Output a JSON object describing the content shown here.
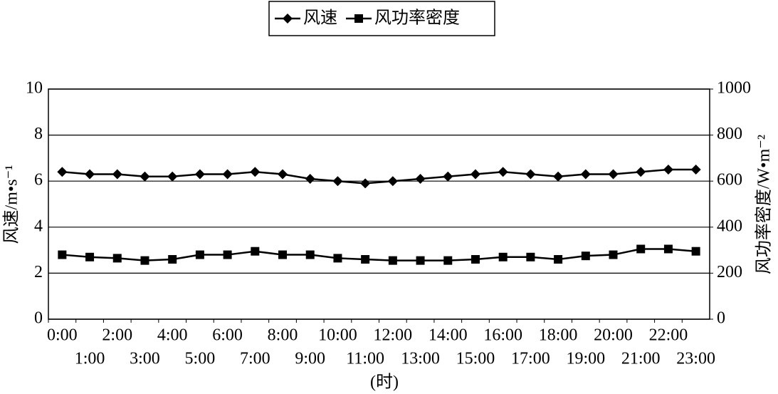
{
  "chart_data": {
    "type": "line",
    "x_label": "(时)",
    "y_label": "风速/m•s⁻¹",
    "y2_label": "风功率密度/W•m⁻²",
    "categories": [
      "0:00",
      "1:00",
      "2:00",
      "3:00",
      "4:00",
      "5:00",
      "6:00",
      "7:00",
      "8:00",
      "9:00",
      "10:00",
      "11:00",
      "12:00",
      "13:00",
      "14:00",
      "15:00",
      "16:00",
      "17:00",
      "18:00",
      "19:00",
      "20:00",
      "21:00",
      "22:00",
      "23:00"
    ],
    "series": [
      {
        "name": "风速",
        "color": "#000000",
        "marker": "diamond",
        "values": [
          6.4,
          6.3,
          6.3,
          6.2,
          6.2,
          6.3,
          6.3,
          6.4,
          6.3,
          6.1,
          6.0,
          5.9,
          6.0,
          6.1,
          6.2,
          6.3,
          6.4,
          6.3,
          6.2,
          6.3,
          6.3,
          6.4,
          6.5,
          6.5
        ]
      },
      {
        "name": "风功率密度",
        "color": "#000000",
        "marker": "square",
        "axis": "y2",
        "values": [
          280,
          270,
          265,
          255,
          260,
          280,
          280,
          295,
          280,
          280,
          265,
          260,
          255,
          255,
          255,
          260,
          270,
          270,
          260,
          275,
          280,
          305,
          305,
          295
        ]
      }
    ],
    "ylim": [
      0,
      10
    ],
    "yticks": [
      0,
      2,
      4,
      6,
      8,
      10
    ],
    "y2lim": [
      0,
      1000
    ],
    "y2ticks": [
      0,
      200,
      400,
      600,
      800,
      1000
    ],
    "grid": true,
    "legend": "top"
  }
}
